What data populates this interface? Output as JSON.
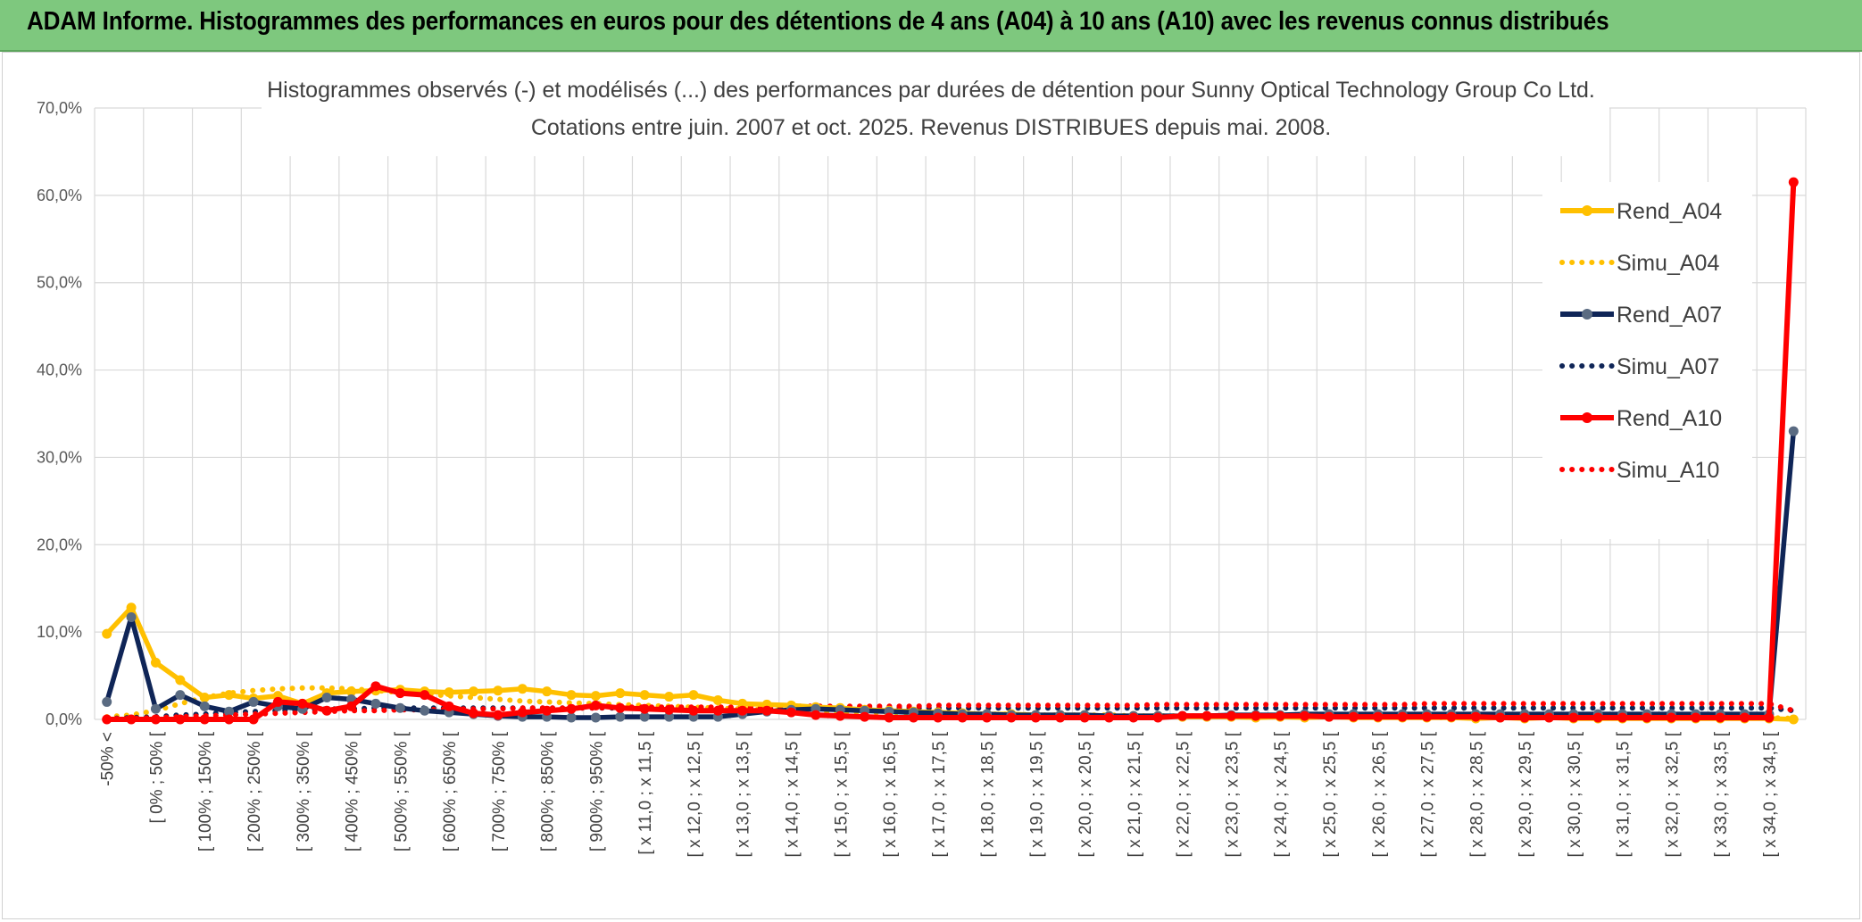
{
  "banner": {
    "title": "ADAM Informe. Histogrammes des performances en euros pour des détentions de 4 ans (A04) à 10 ans (A10) avec les revenus connus distribués"
  },
  "colors": {
    "banner_bg": "#7ec87e",
    "a04": "#ffc000",
    "a07": "#0f2557",
    "a07_marker": "#5a6b82",
    "a10": "#ff0000"
  },
  "chart_data": {
    "type": "line",
    "title": "Histogrammes observés (-) et modélisés (...) des performances par durées de détention pour Sunny Optical Technology Group Co Ltd.",
    "subtitle": "Cotations entre juin. 2007 et oct. 2025.  Revenus DISTRIBUES depuis mai. 2008.",
    "ylim": [
      0,
      70
    ],
    "yticks": [
      "0,0%",
      "10,0%",
      "20,0%",
      "30,0%",
      "40,0%",
      "50,0%",
      "60,0%",
      "70,0%"
    ],
    "grid": true,
    "legend_position": "right",
    "x_labels_shown": [
      "-50% <",
      "[ 0% ; 50% [",
      "[ 100% ; 150% [",
      "[ 200% ; 250% [",
      "[ 300% ; 350% [",
      "[ 400% ; 450% [",
      "[ 500% ; 550% [",
      "[ 600% ; 650% [",
      "[ 700% ; 750% [",
      "[ 800% ; 850% [",
      "[ 900% ; 950% [",
      "[ x 11,0 ; x 11,5 [",
      "[ x 12,0 ; x 12,5 [",
      "[ x 13,0 ; x 13,5 [",
      "[ x 14,0 ; x 14,5 [",
      "[ x 15,0 ; x 15,5 [",
      "[ x 16,0 ; x 16,5 [",
      "[ x 17,0 ; x 17,5 [",
      "[ x 18,0 ; x 18,5 [",
      "[ x 19,0 ; x 19,5 [",
      "[ x 20,0 ; x 20,5 [",
      "[ x 21,0 ; x 21,5 [",
      "[ x 22,0 ; x 22,5 [",
      "[ x 23,0 ; x 23,5 [",
      "[ x 24,0 ; x 24,5 [",
      "[ x 25,0 ; x 25,5 [",
      "[ x 26,0 ; x 26,5 [",
      "[ x 27,0 ; x 27,5 [",
      "[ x 28,0 ; x 28,5 [",
      "[ x 29,0 ; x 29,5 [",
      "[ x 30,0 ; x 30,5 [",
      "[ x 31,0 ; x 31,5 [",
      "[ x 32,0 ; x 32,5 [",
      "[ x 33,0 ; x 33,5 [",
      "[ x 34,0 ; x 34,5 ["
    ],
    "n_points": 70,
    "series": [
      {
        "name": "Rend_A04",
        "style": "solid",
        "values": [
          9.8,
          12.8,
          6.5,
          4.5,
          2.5,
          2.8,
          2.4,
          2.7,
          1.8,
          3.0,
          3.2,
          3.3,
          3.4,
          3.2,
          3.1,
          3.2,
          3.3,
          3.5,
          3.2,
          2.8,
          2.7,
          3.0,
          2.8,
          2.6,
          2.8,
          2.2,
          1.8,
          1.7,
          1.6,
          1.4,
          1.3,
          1.1,
          1.0,
          0.9,
          0.8,
          0.7,
          0.6,
          0.6,
          0.5,
          0.5,
          0.5,
          0.4,
          0.4,
          0.4,
          0.3,
          0.3,
          0.3,
          0.2,
          0.3,
          0.2,
          0.3,
          0.2,
          0.2,
          0.2,
          0.2,
          0.2,
          0.1,
          0.2,
          0.1,
          0.2,
          0.1,
          0.1,
          0.1,
          0.1,
          0.1,
          0.1,
          0.1,
          0.1,
          0.1,
          0.0
        ]
      },
      {
        "name": "Simu_A04",
        "style": "dotted",
        "values": [
          0.3,
          0.5,
          1.0,
          1.8,
          2.5,
          3.0,
          3.3,
          3.5,
          3.6,
          3.6,
          3.5,
          3.3,
          3.1,
          2.9,
          2.7,
          2.5,
          2.3,
          2.1,
          2.0,
          1.9,
          1.8,
          1.7,
          1.6,
          1.5,
          1.4,
          1.3,
          1.2,
          1.1,
          1.0,
          0.9,
          0.9,
          0.8,
          0.8,
          0.7,
          0.7,
          0.6,
          0.6,
          0.6,
          0.5,
          0.5,
          0.5,
          0.5,
          0.4,
          0.4,
          0.4,
          0.4,
          0.4,
          0.3,
          0.3,
          0.3,
          0.3,
          0.3,
          0.3,
          0.3,
          0.2,
          0.2,
          0.2,
          0.2,
          0.2,
          0.2,
          0.2,
          0.2,
          0.2,
          0.2,
          0.2,
          0.2,
          0.2,
          0.2,
          0.2,
          0.1
        ]
      },
      {
        "name": "Rend_A07",
        "style": "solid",
        "values": [
          2.0,
          11.7,
          1.2,
          2.8,
          1.5,
          0.9,
          2.0,
          1.5,
          1.2,
          2.5,
          2.3,
          1.8,
          1.3,
          1.0,
          0.8,
          0.6,
          0.4,
          0.3,
          0.3,
          0.2,
          0.2,
          0.3,
          0.3,
          0.3,
          0.3,
          0.3,
          0.6,
          0.9,
          1.1,
          1.2,
          1.1,
          1.0,
          0.9,
          0.8,
          0.7,
          0.6,
          0.6,
          0.5,
          0.5,
          0.5,
          0.5,
          0.4,
          0.4,
          0.4,
          0.4,
          0.4,
          0.5,
          0.5,
          0.5,
          0.6,
          0.6,
          0.6,
          0.6,
          0.6,
          0.6,
          0.6,
          0.6,
          0.6,
          0.6,
          0.6,
          0.6,
          0.6,
          0.6,
          0.6,
          0.6,
          0.6,
          0.6,
          0.6,
          0.6,
          33.0
        ]
      },
      {
        "name": "Simu_A07",
        "style": "dotted",
        "values": [
          0.1,
          0.2,
          0.3,
          0.5,
          0.6,
          0.8,
          0.9,
          1.0,
          1.1,
          1.2,
          1.2,
          1.3,
          1.3,
          1.3,
          1.3,
          1.3,
          1.3,
          1.3,
          1.3,
          1.3,
          1.3,
          1.3,
          1.3,
          1.3,
          1.3,
          1.3,
          1.3,
          1.3,
          1.3,
          1.3,
          1.3,
          1.3,
          1.3,
          1.3,
          1.3,
          1.3,
          1.3,
          1.3,
          1.3,
          1.3,
          1.3,
          1.3,
          1.3,
          1.3,
          1.3,
          1.3,
          1.3,
          1.3,
          1.3,
          1.3,
          1.3,
          1.3,
          1.3,
          1.3,
          1.3,
          1.3,
          1.3,
          1.3,
          1.3,
          1.3,
          1.3,
          1.3,
          1.3,
          1.3,
          1.3,
          1.3,
          1.3,
          1.3,
          1.3,
          1.0
        ]
      },
      {
        "name": "Rend_A10",
        "style": "solid",
        "values": [
          0.0,
          0.0,
          0.0,
          0.0,
          0.0,
          0.0,
          0.0,
          2.0,
          1.8,
          1.0,
          1.5,
          3.8,
          3.0,
          2.8,
          1.5,
          0.7,
          0.5,
          0.8,
          1.0,
          1.2,
          1.6,
          1.3,
          1.2,
          1.1,
          1.0,
          1.0,
          1.0,
          1.0,
          0.8,
          0.5,
          0.4,
          0.3,
          0.2,
          0.2,
          0.2,
          0.2,
          0.2,
          0.2,
          0.2,
          0.2,
          0.2,
          0.2,
          0.2,
          0.2,
          0.4,
          0.4,
          0.4,
          0.4,
          0.4,
          0.4,
          0.3,
          0.3,
          0.3,
          0.3,
          0.3,
          0.3,
          0.3,
          0.2,
          0.2,
          0.2,
          0.2,
          0.2,
          0.2,
          0.2,
          0.2,
          0.2,
          0.2,
          0.2,
          0.2,
          61.5
        ]
      },
      {
        "name": "Simu_A10",
        "style": "dotted",
        "values": [
          0.1,
          0.1,
          0.2,
          0.3,
          0.4,
          0.5,
          0.6,
          0.7,
          0.8,
          0.9,
          1.0,
          1.0,
          1.1,
          1.1,
          1.2,
          1.2,
          1.2,
          1.3,
          1.3,
          1.3,
          1.3,
          1.4,
          1.4,
          1.4,
          1.4,
          1.4,
          1.4,
          1.5,
          1.5,
          1.5,
          1.5,
          1.5,
          1.5,
          1.5,
          1.6,
          1.6,
          1.6,
          1.6,
          1.6,
          1.6,
          1.6,
          1.6,
          1.6,
          1.7,
          1.7,
          1.7,
          1.7,
          1.7,
          1.7,
          1.7,
          1.7,
          1.7,
          1.7,
          1.7,
          1.8,
          1.8,
          1.8,
          1.8,
          1.8,
          1.8,
          1.8,
          1.8,
          1.8,
          1.8,
          1.8,
          1.8,
          1.8,
          1.8,
          1.8,
          1.0
        ]
      }
    ]
  }
}
